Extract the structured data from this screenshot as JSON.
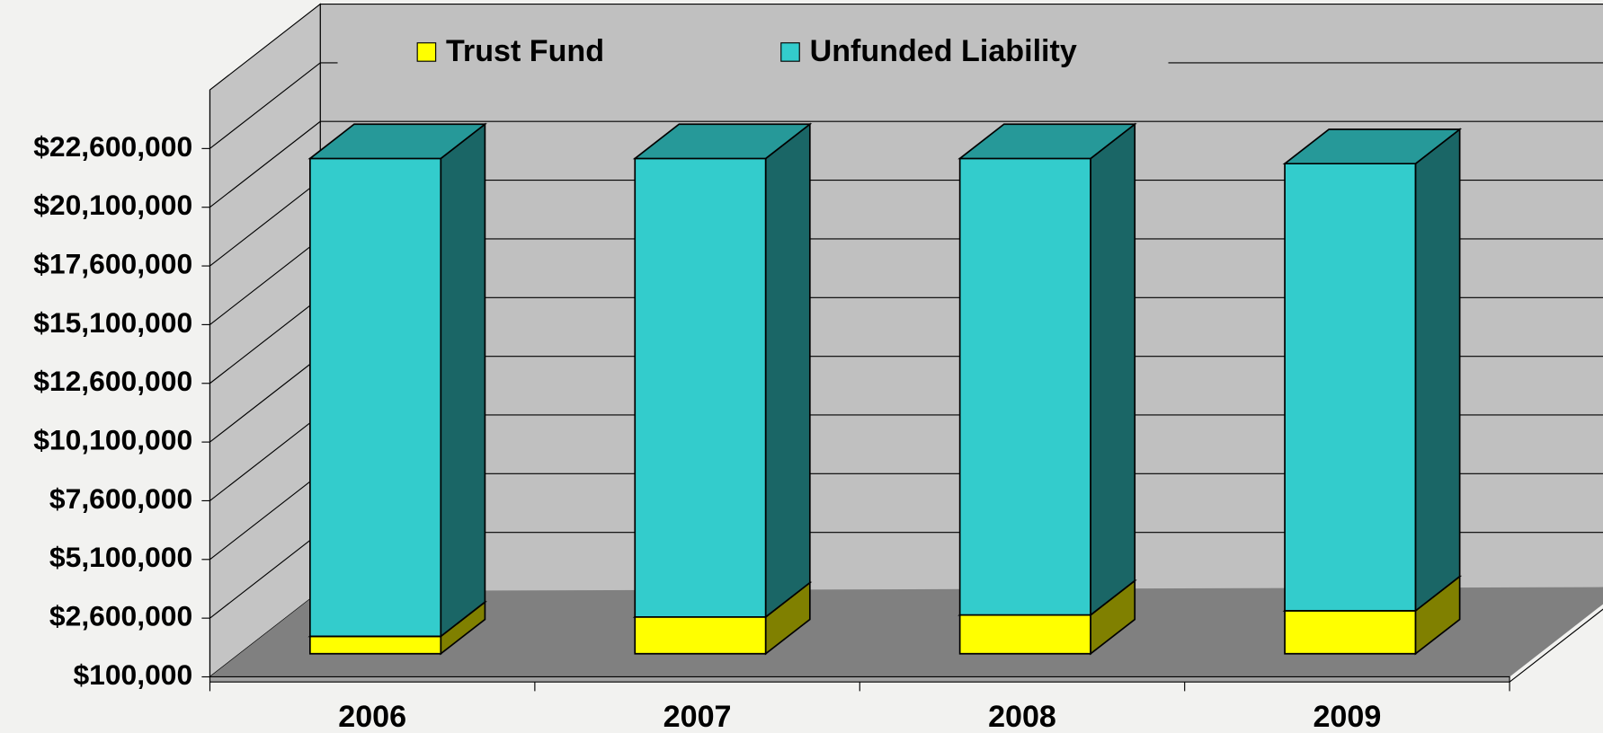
{
  "chart_data": {
    "type": "bar3d_stacked",
    "categories": [
      "2006",
      "2007",
      "2008",
      "2009"
    ],
    "series": [
      {
        "name": "Trust Fund",
        "color": "#ffff00",
        "side_color": "#808000",
        "top_color": "#cccc00",
        "values": [
          840000,
          1665000,
          1750000,
          1930000
        ]
      },
      {
        "name": "Unfunded Liability",
        "color": "#33cccc",
        "side_color": "#1a6666",
        "top_color": "#269999",
        "values": [
          20350000,
          19525000,
          19440000,
          19040000
        ]
      }
    ],
    "ylim": [
      100000,
      25100000
    ],
    "yticks": [
      {
        "value": 100000,
        "label": "$100,000"
      },
      {
        "value": 2600000,
        "label": "$2,600,000"
      },
      {
        "value": 5100000,
        "label": "$5,100,000"
      },
      {
        "value": 7600000,
        "label": "$7,600,000"
      },
      {
        "value": 10100000,
        "label": "$10,100,000"
      },
      {
        "value": 12600000,
        "label": "$12,600,000"
      },
      {
        "value": 15100000,
        "label": "$15,100,000"
      },
      {
        "value": 17600000,
        "label": "$17,600,000"
      },
      {
        "value": 20100000,
        "label": "$20,100,000"
      },
      {
        "value": 22600000,
        "label": "$22,600,000"
      }
    ],
    "grid": true,
    "legend": "top"
  }
}
